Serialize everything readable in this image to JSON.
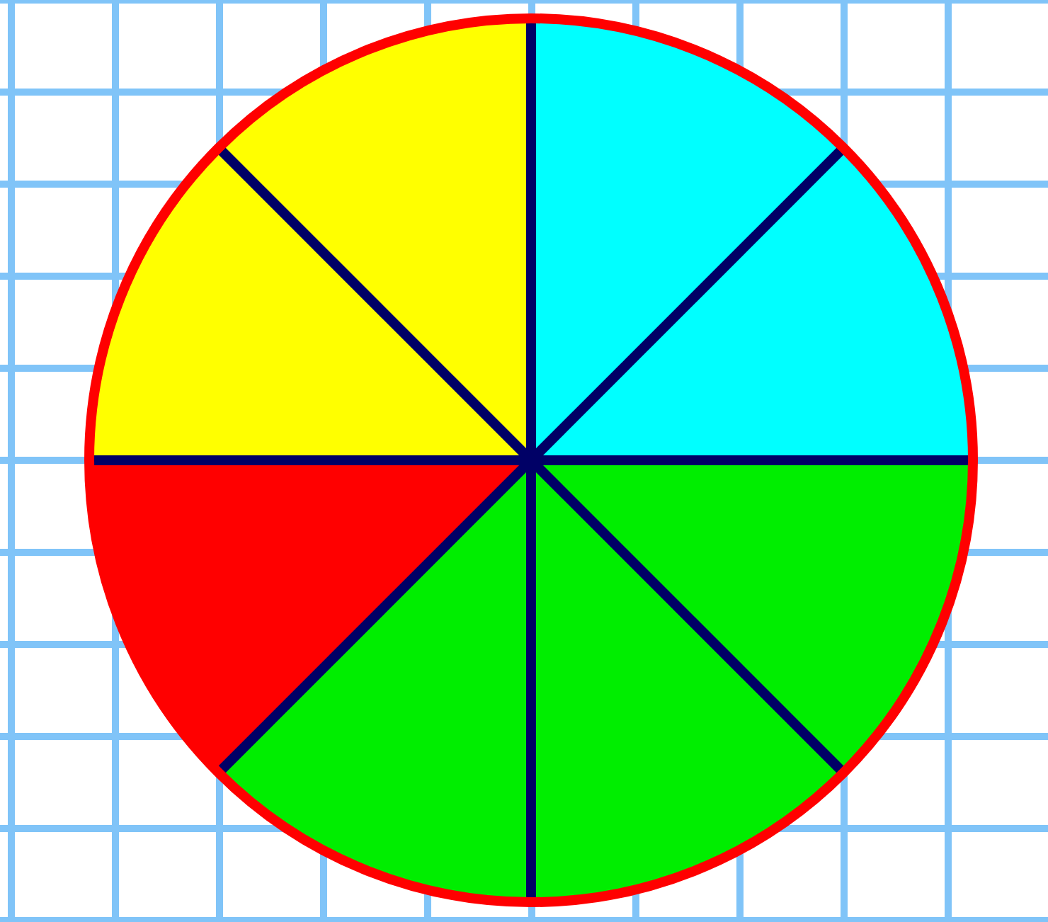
{
  "chart_data": {
    "type": "pie",
    "categories": [
      null,
      null,
      null,
      null
    ],
    "values": [
      25,
      37.5,
      12.5,
      25
    ],
    "colors": [
      "#00ffff",
      "#00ee00",
      "#ff0000",
      "#ffff00"
    ]
  }
}
